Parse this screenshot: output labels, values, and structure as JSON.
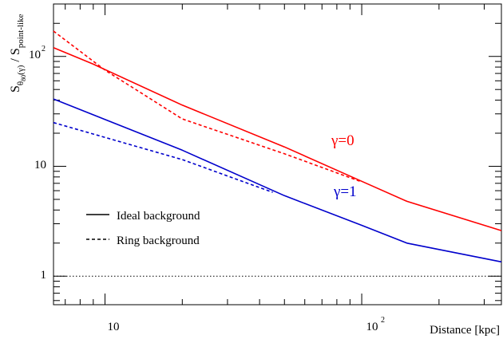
{
  "chart_data": {
    "type": "line",
    "title": "",
    "xlabel": "Distance [kpc]",
    "ylabel": {
      "main": "S",
      "sub_theta": "θ",
      "sub_theta_sub": "80",
      "sub_gamma": "(γ)",
      "divider": " / S",
      "sub_point": "point-like"
    },
    "x_scale": "log",
    "y_scale": "log",
    "xlim": [
      6.3,
      350
    ],
    "ylim": [
      0.55,
      300
    ],
    "x_ticks": [
      {
        "value": 10,
        "base": "10",
        "exp": ""
      },
      {
        "value": 100,
        "base": "10",
        "exp": "2"
      }
    ],
    "y_ticks": [
      {
        "value": 1,
        "base": "1",
        "exp": ""
      },
      {
        "value": 10,
        "base": "10",
        "exp": ""
      },
      {
        "value": 100,
        "base": "10",
        "exp": "2"
      }
    ],
    "grid": false,
    "series": [
      {
        "name": "",
        "style": "solid",
        "color": "#ff0000",
        "points": [
          [
            6.3,
            120
          ],
          [
            9,
            85
          ],
          [
            20,
            36
          ],
          [
            50,
            15
          ],
          [
            100,
            7.3
          ],
          [
            150,
            4.8
          ],
          [
            350,
            2.6
          ]
        ]
      },
      {
        "name": "",
        "style": "dashed",
        "color": "#ff0000",
        "points": [
          [
            6.3,
            170
          ],
          [
            10,
            75
          ],
          [
            20,
            27
          ],
          [
            50,
            13
          ],
          [
            100,
            7.2
          ]
        ]
      },
      {
        "name": "",
        "style": "solid",
        "color": "#0000cc",
        "points": [
          [
            6.3,
            41
          ],
          [
            20,
            14
          ],
          [
            50,
            5.4
          ],
          [
            100,
            2.9
          ],
          [
            150,
            2.0
          ],
          [
            350,
            1.35
          ]
        ]
      },
      {
        "name": "",
        "style": "dashed",
        "color": "#0000cc",
        "points": [
          [
            6.3,
            25
          ],
          [
            20,
            11.5
          ],
          [
            45,
            5.8
          ]
        ]
      },
      {
        "name": "",
        "style": "dotted",
        "color": "#000000",
        "points": [
          [
            6.3,
            1
          ],
          [
            350,
            1
          ]
        ]
      }
    ],
    "annotations": [
      {
        "text": "γ=0",
        "color": "#ff0000"
      },
      {
        "text": "γ=1",
        "color": "#0000cc"
      }
    ],
    "legend": {
      "position": "bottom-left",
      "entries": [
        {
          "label": "Ideal background",
          "style": "solid"
        },
        {
          "label": "Ring background",
          "style": "dashed"
        }
      ]
    }
  }
}
